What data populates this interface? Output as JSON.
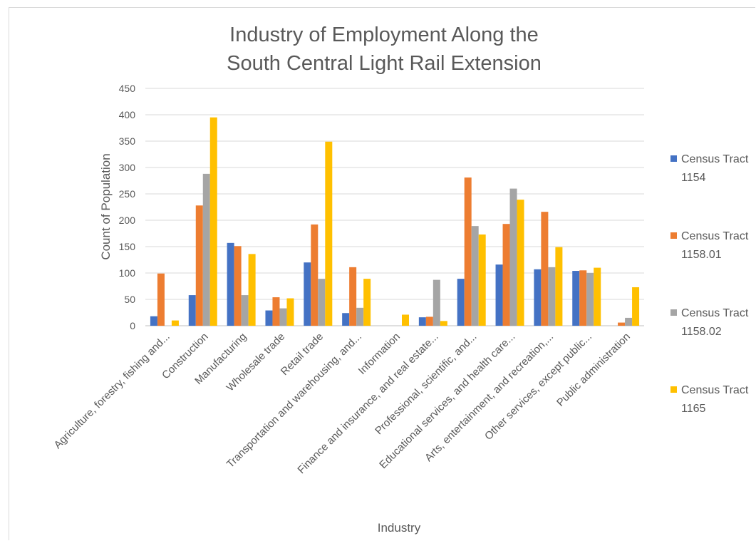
{
  "chart_data": {
    "type": "bar",
    "title_lines": [
      "Industry of Employment Along the",
      "South Central Light Rail Extension"
    ],
    "xlabel": "Industry",
    "ylabel": "Count of Population",
    "ylim": [
      0,
      450
    ],
    "yticks": [
      0,
      50,
      100,
      150,
      200,
      250,
      300,
      350,
      400,
      450
    ],
    "grid": true,
    "legend_position": "right",
    "categories": [
      "Agriculture, forestry, fishing and...",
      "Construction",
      "Manufacturing",
      "Wholesale trade",
      "Retail trade",
      "Transportation and warehousing, and...",
      "Information",
      "Finance and insurance, and real estate...",
      "Professional, scientific, and...",
      "Educational services, and health care...",
      "Arts, entertainment, and recreation,...",
      "Other services, except public...",
      "Public administration"
    ],
    "series": [
      {
        "name": "Census Tract 1154",
        "legend_lines": [
          "Census Tract",
          "1154"
        ],
        "color": "#4472c4",
        "values": [
          18,
          58,
          157,
          29,
          120,
          24,
          0,
          16,
          89,
          116,
          107,
          104,
          0
        ]
      },
      {
        "name": "Census Tract 1158.01",
        "legend_lines": [
          "Census Tract",
          "1158.01"
        ],
        "color": "#ed7d31",
        "values": [
          99,
          228,
          151,
          54,
          192,
          111,
          0,
          17,
          281,
          193,
          216,
          105,
          6
        ]
      },
      {
        "name": "Census Tract 1158.02",
        "legend_lines": [
          "Census Tract",
          "1158.02"
        ],
        "color": "#a5a5a5",
        "values": [
          0,
          288,
          58,
          33,
          89,
          34,
          0,
          87,
          189,
          260,
          111,
          100,
          15
        ]
      },
      {
        "name": "Census Tract 1165",
        "legend_lines": [
          "Census Tract",
          "1165"
        ],
        "color": "#ffc000",
        "values": [
          10,
          395,
          136,
          52,
          349,
          89,
          21,
          9,
          173,
          239,
          149,
          110,
          73
        ]
      }
    ]
  }
}
